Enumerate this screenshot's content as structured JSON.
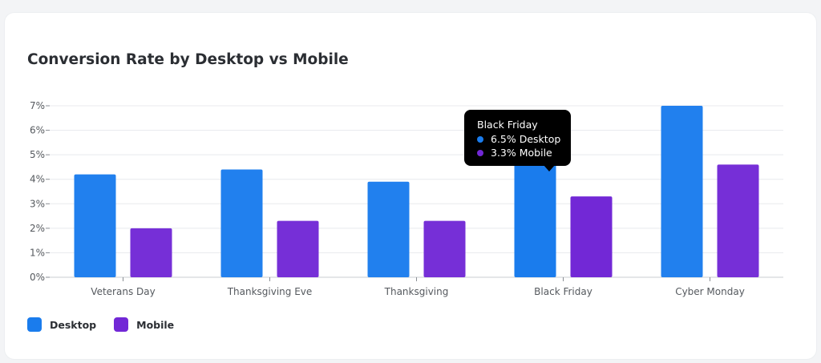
{
  "chart_data": {
    "type": "bar",
    "title": "Conversion Rate by Desktop vs Mobile",
    "categories": [
      "Veterans Day",
      "Thanksgiving Eve",
      "Thanksgiving",
      "Black Friday",
      "Cyber Monday"
    ],
    "series": [
      {
        "name": "Desktop",
        "color": "#1a7ced",
        "values": [
          4.2,
          4.4,
          3.9,
          6.5,
          7.0
        ]
      },
      {
        "name": "Mobile",
        "color": "#7228d6",
        "values": [
          2.0,
          2.3,
          2.3,
          3.3,
          4.6
        ]
      }
    ],
    "y_ticks": [
      "0%",
      "1%",
      "2%",
      "3%",
      "4%",
      "5%",
      "6%",
      "7%"
    ],
    "ylim": [
      0,
      7
    ],
    "grid": true,
    "legend_position": "bottom-left",
    "tooltip": {
      "category": "Black Friday",
      "rows": [
        {
          "text": "6.5% Desktop",
          "color": "#1a7ced"
        },
        {
          "text": "3.3% Mobile",
          "color": "#7228d6"
        }
      ]
    }
  }
}
